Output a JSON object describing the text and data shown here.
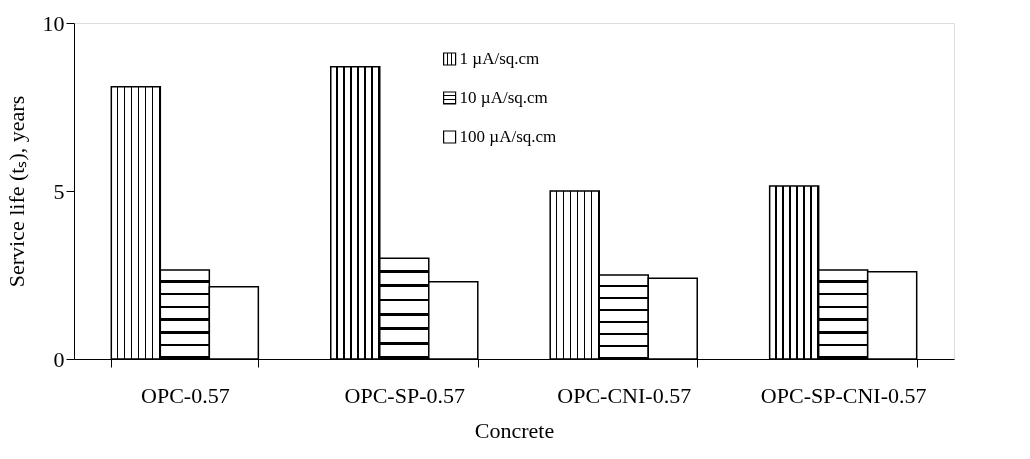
{
  "chart_data": {
    "type": "bar",
    "xlabel": "Concrete",
    "ylabel": "Service life (tₛ), years",
    "categories": [
      "OPC-0.57",
      "OPC-SP-0.57",
      "OPC-CNI-0.57",
      "OPC-SP-CNI-0.57"
    ],
    "series": [
      {
        "name": "1 µA/sq.cm",
        "color": "#000000",
        "values": [
          8.1,
          8.7,
          5.0,
          5.15
        ]
      },
      {
        "name": "10 µA/sq.cm",
        "color": "#000000",
        "values": [
          2.65,
          3.0,
          2.5,
          2.65
        ]
      },
      {
        "name": "100 µA/sq.cm",
        "color": "#ffffff",
        "values": [
          2.15,
          2.3,
          2.4,
          2.6
        ]
      }
    ],
    "ylim": [
      0,
      10
    ],
    "yticks": [
      0,
      5,
      10
    ],
    "grid": false,
    "legend": "top"
  }
}
